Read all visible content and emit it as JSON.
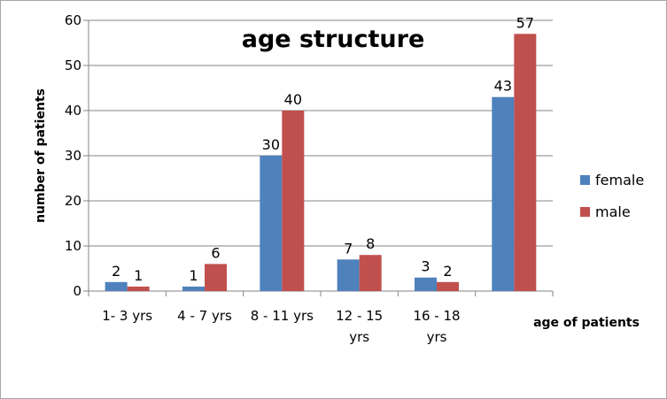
{
  "chart_data": {
    "type": "bar",
    "title": "age structure",
    "xlabel": "age of patients",
    "ylabel": "number of patients",
    "categories": [
      [
        "1- 3 yrs"
      ],
      [
        "4 - 7 yrs"
      ],
      [
        "8 - 11 yrs"
      ],
      [
        "12 - 15",
        "yrs"
      ],
      [
        "16 - 18",
        "yrs"
      ],
      [
        ""
      ]
    ],
    "series": [
      {
        "name": "female",
        "color": "#4f81bd",
        "values": [
          2,
          1,
          30,
          7,
          3,
          43
        ]
      },
      {
        "name": "male",
        "color": "#c0504d",
        "values": [
          1,
          6,
          40,
          8,
          2,
          57
        ]
      }
    ],
    "ylim": [
      0,
      60
    ],
    "yticks": [
      0,
      10,
      20,
      30,
      40,
      50,
      60
    ],
    "grid": true,
    "legend_position": "right"
  }
}
